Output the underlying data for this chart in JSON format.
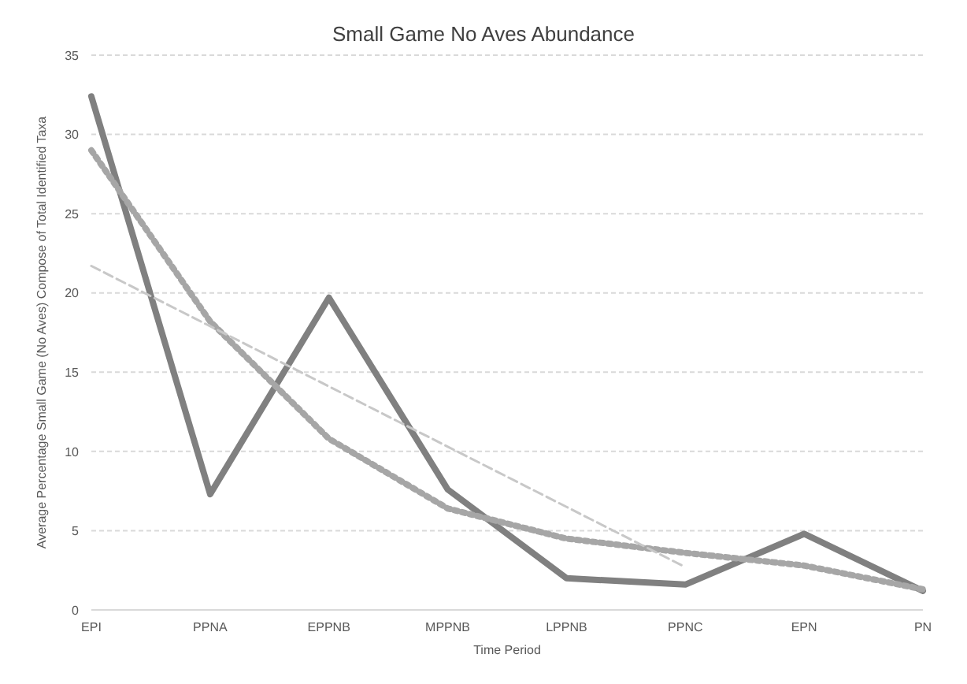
{
  "chart_data": {
    "type": "line",
    "title": "Small Game No Aves Abundance",
    "xlabel": "Time Period",
    "ylabel": "Average Percentage Small Game (No Aves) Compose of Total Identified Taxa",
    "categories": [
      "EPI",
      "PPNA",
      "EPPNB",
      "MPPNB",
      "LPPNB",
      "PPNC",
      "EPN",
      "PN"
    ],
    "series": [
      {
        "color": "#808080",
        "values": [
          32.4,
          7.3,
          19.7,
          7.6,
          2.0,
          1.6,
          4.8,
          1.2
        ],
        "line_style": "solid"
      },
      {
        "color": "#a6a6a6",
        "values": [
          29.0,
          18.2,
          10.8,
          6.4,
          4.5,
          3.6,
          2.8,
          1.3
        ],
        "line_style": "dotted"
      },
      {
        "color": "#c8c8c8",
        "values": [
          21.7,
          17.9,
          14.1,
          10.3,
          6.5,
          2.7,
          null,
          null
        ],
        "line_style": "dashed"
      }
    ],
    "ylim": [
      0,
      35
    ],
    "yticks": [
      0,
      5,
      10,
      15,
      20,
      25,
      30,
      35
    ],
    "grid": "y",
    "marker": "none"
  }
}
